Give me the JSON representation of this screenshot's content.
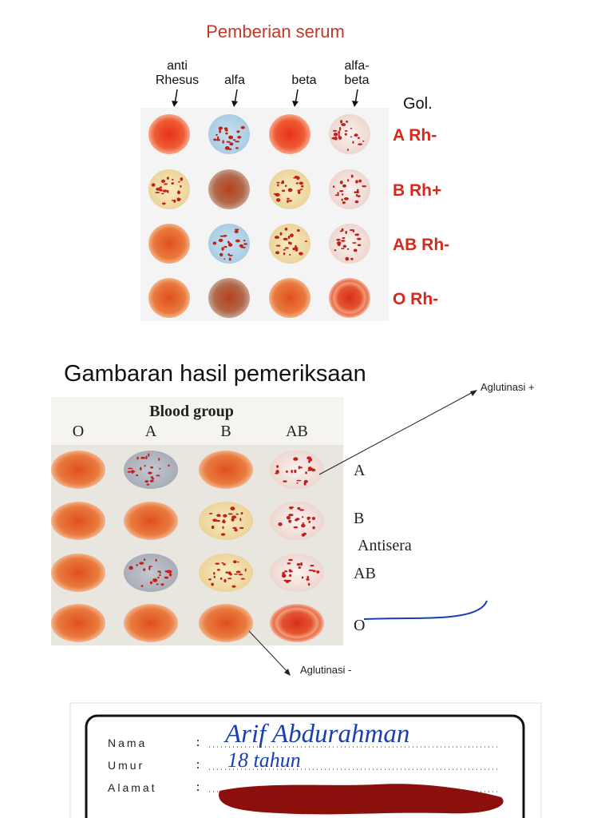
{
  "panel_serum": {
    "title": "Pemberian serum",
    "column_headers": [
      [
        "anti",
        "Rhesus"
      ],
      [
        "alfa"
      ],
      [
        "beta"
      ],
      [
        "alfa-",
        "beta"
      ]
    ],
    "group_header": "Gol.",
    "rows": [
      "A Rh-",
      "B Rh+",
      "AB Rh-",
      "O Rh-"
    ]
  },
  "panel_results": {
    "heading": "Gambaran hasil pemeriksaan",
    "blood_group_label": "Blood group",
    "columns": [
      "O",
      "A",
      "B",
      "AB"
    ],
    "rows": [
      "A",
      "B",
      "AB",
      "O"
    ],
    "antisera_label": "Antisera",
    "annotation_positive": "Aglutinasi +",
    "annotation_negative": "Aglutinasi -"
  },
  "card": {
    "labels": [
      "Nama",
      "Umur",
      "Alamat"
    ],
    "values": [
      "Arif Abdurahman",
      "18 tahun"
    ]
  }
}
